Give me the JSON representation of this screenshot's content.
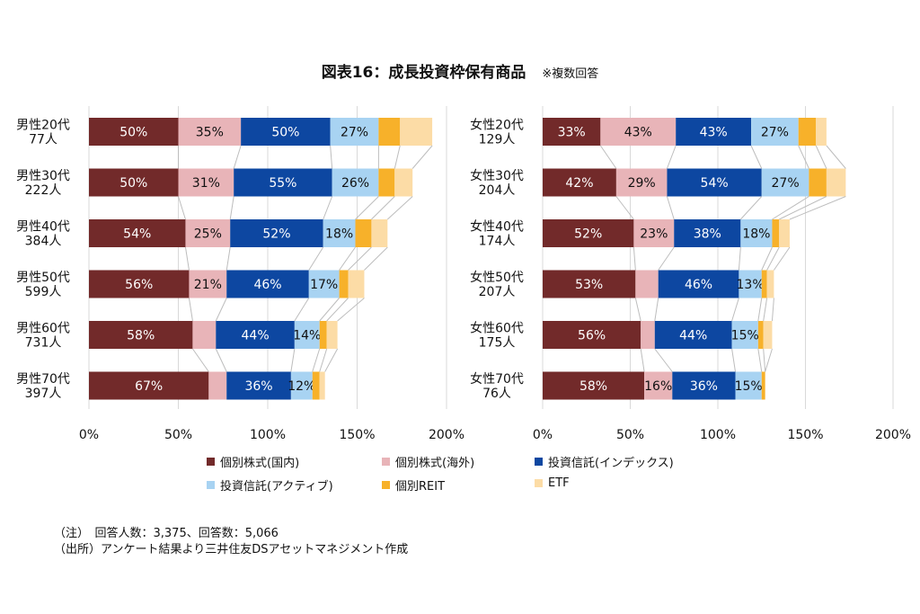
{
  "title": "図表16：成長投資枠保有商品",
  "title_note": "※複数回答",
  "chart_data": {
    "type": "bar",
    "stacked": true,
    "orientation": "horizontal",
    "xlim": [
      0,
      200
    ],
    "x_ticks": [
      "0%",
      "50%",
      "100%",
      "150%",
      "200%"
    ],
    "grid": true,
    "legend_position": "bottom",
    "series": [
      {
        "name": "個別株式(国内)",
        "color": "#722a2a"
      },
      {
        "name": "個別株式(海外)",
        "color": "#e8b4b8"
      },
      {
        "name": "投資信託(インデックス)",
        "color": "#0d47a1"
      },
      {
        "name": "投資信託(アクティブ)",
        "color": "#a8d3f2"
      },
      {
        "name": "個別REIT",
        "color": "#f7b12a"
      },
      {
        "name": "ETF",
        "color": "#fcdca6"
      }
    ],
    "panels": [
      {
        "groups": [
          {
            "label1": "男性20代",
            "label2": "77人",
            "values": [
              50,
              35,
              50,
              27,
              12,
              18
            ],
            "labels": [
              "50%",
              "35%",
              "50%",
              "27%",
              "",
              ""
            ]
          },
          {
            "label1": "男性30代",
            "label2": "222人",
            "values": [
              50,
              31,
              55,
              26,
              9,
              10
            ],
            "labels": [
              "50%",
              "31%",
              "55%",
              "26%",
              "",
              ""
            ]
          },
          {
            "label1": "男性40代",
            "label2": "384人",
            "values": [
              54,
              25,
              52,
              18,
              9,
              9
            ],
            "labels": [
              "54%",
              "25%",
              "52%",
              "18%",
              "",
              ""
            ]
          },
          {
            "label1": "男性50代",
            "label2": "599人",
            "values": [
              56,
              21,
              46,
              17,
              5,
              9
            ],
            "labels": [
              "56%",
              "21%",
              "46%",
              "17%",
              "",
              ""
            ]
          },
          {
            "label1": "男性60代",
            "label2": "731人",
            "values": [
              58,
              13,
              44,
              14,
              4,
              6
            ],
            "labels": [
              "58%",
              "",
              "44%",
              "14%",
              "",
              ""
            ]
          },
          {
            "label1": "男性70代",
            "label2": "397人",
            "values": [
              67,
              10,
              36,
              12,
              4,
              3
            ],
            "labels": [
              "67%",
              "",
              "36%",
              "12%",
              "",
              ""
            ]
          }
        ]
      },
      {
        "groups": [
          {
            "label1": "女性20代",
            "label2": "129人",
            "values": [
              33,
              43,
              43,
              27,
              10,
              6
            ],
            "labels": [
              "33%",
              "43%",
              "43%",
              "27%",
              "",
              ""
            ]
          },
          {
            "label1": "女性30代",
            "label2": "204人",
            "values": [
              42,
              29,
              54,
              27,
              10,
              11
            ],
            "labels": [
              "42%",
              "29%",
              "54%",
              "27%",
              "",
              ""
            ]
          },
          {
            "label1": "女性40代",
            "label2": "174人",
            "values": [
              52,
              23,
              38,
              18,
              4,
              6
            ],
            "labels": [
              "52%",
              "23%",
              "38%",
              "18%",
              "",
              ""
            ]
          },
          {
            "label1": "女性50代",
            "label2": "207人",
            "values": [
              53,
              13,
              46,
              13,
              3,
              4
            ],
            "labels": [
              "53%",
              "",
              "46%",
              "13%",
              "",
              ""
            ]
          },
          {
            "label1": "女性60代",
            "label2": "175人",
            "values": [
              56,
              8,
              44,
              15,
              3,
              5
            ],
            "labels": [
              "56%",
              "",
              "44%",
              "15%",
              "",
              ""
            ]
          },
          {
            "label1": "女性70代",
            "label2": "76人",
            "values": [
              58,
              16,
              36,
              15,
              2,
              0
            ],
            "labels": [
              "58%",
              "16%",
              "36%",
              "15%",
              "",
              ""
            ]
          }
        ]
      }
    ]
  },
  "notes": {
    "line1": "（注）　回答人数：3,375、回答数：5,066",
    "line2": "（出所）アンケート結果より三井住友DSアセットマネジメント作成"
  }
}
